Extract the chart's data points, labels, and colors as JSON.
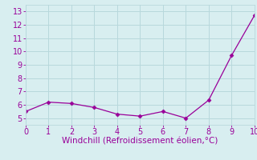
{
  "x": [
    0,
    1,
    2,
    3,
    4,
    5,
    6,
    7,
    8,
    9,
    10
  ],
  "y": [
    5.5,
    6.2,
    6.1,
    5.8,
    5.3,
    5.15,
    5.5,
    5.0,
    6.35,
    9.7,
    12.7
  ],
  "line_color": "#990099",
  "marker": "D",
  "marker_size": 2.5,
  "xlabel": "Windchill (Refroidissement éolien,°C)",
  "xlabel_color": "#990099",
  "xlim": [
    0,
    10
  ],
  "ylim": [
    4.5,
    13.5
  ],
  "xticks": [
    0,
    1,
    2,
    3,
    4,
    5,
    6,
    7,
    8,
    9,
    10
  ],
  "yticks": [
    5,
    6,
    7,
    8,
    9,
    10,
    11,
    12,
    13
  ],
  "background_color": "#d8eef0",
  "grid_color": "#b8d8dc",
  "tick_color": "#990099",
  "tick_label_color": "#990099",
  "font_size": 7.0,
  "xlabel_fontsize": 7.5
}
